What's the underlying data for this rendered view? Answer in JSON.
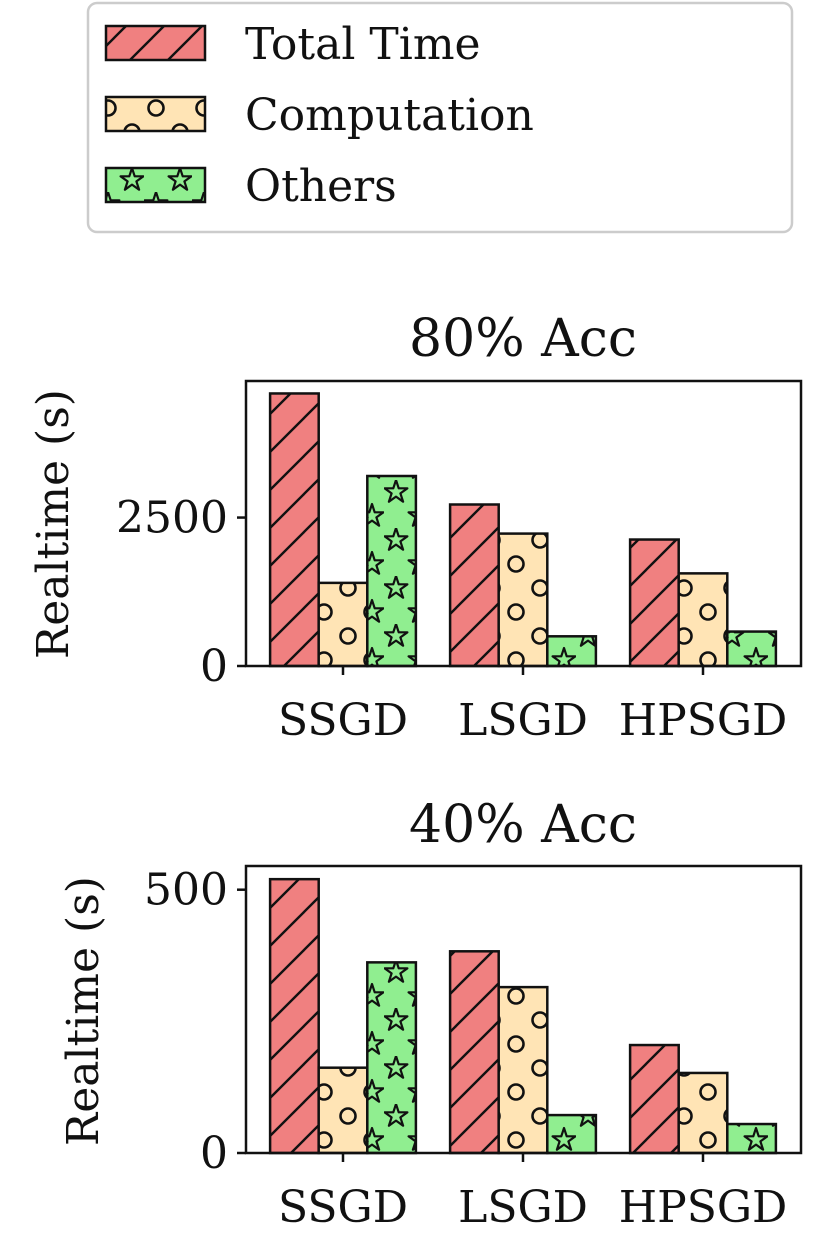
{
  "legend": {
    "entries": [
      {
        "label": "Total Time",
        "color": "#f08080",
        "pattern": "hatch"
      },
      {
        "label": "Computation",
        "color": "#ffe4b5",
        "pattern": "circles"
      },
      {
        "label": "Others",
        "color": "#90ee90",
        "pattern": "stars"
      }
    ]
  },
  "chart_data": [
    {
      "type": "bar",
      "title": "80% Acc",
      "ylabel": "Realtime (s)",
      "xlabel": "",
      "categories": [
        "SSGD",
        "LSGD",
        "HPSGD"
      ],
      "ylim": [
        0,
        4800
      ],
      "yticks": [
        0,
        2500
      ],
      "series": [
        {
          "name": "Total Time",
          "values": [
            4590,
            2720,
            2130
          ]
        },
        {
          "name": "Computation",
          "values": [
            1400,
            2230,
            1560
          ]
        },
        {
          "name": "Others",
          "values": [
            3200,
            500,
            580
          ]
        }
      ]
    },
    {
      "type": "bar",
      "title": "40% Acc",
      "ylabel": "Realtime (s)",
      "xlabel": "",
      "categories": [
        "SSGD",
        "LSGD",
        "HPSGD"
      ],
      "ylim": [
        0,
        545
      ],
      "yticks": [
        0,
        500
      ],
      "series": [
        {
          "name": "Total Time",
          "values": [
            520,
            383,
            205
          ]
        },
        {
          "name": "Computation",
          "values": [
            162,
            315,
            152
          ]
        },
        {
          "name": "Others",
          "values": [
            362,
            72,
            55
          ]
        }
      ]
    }
  ]
}
